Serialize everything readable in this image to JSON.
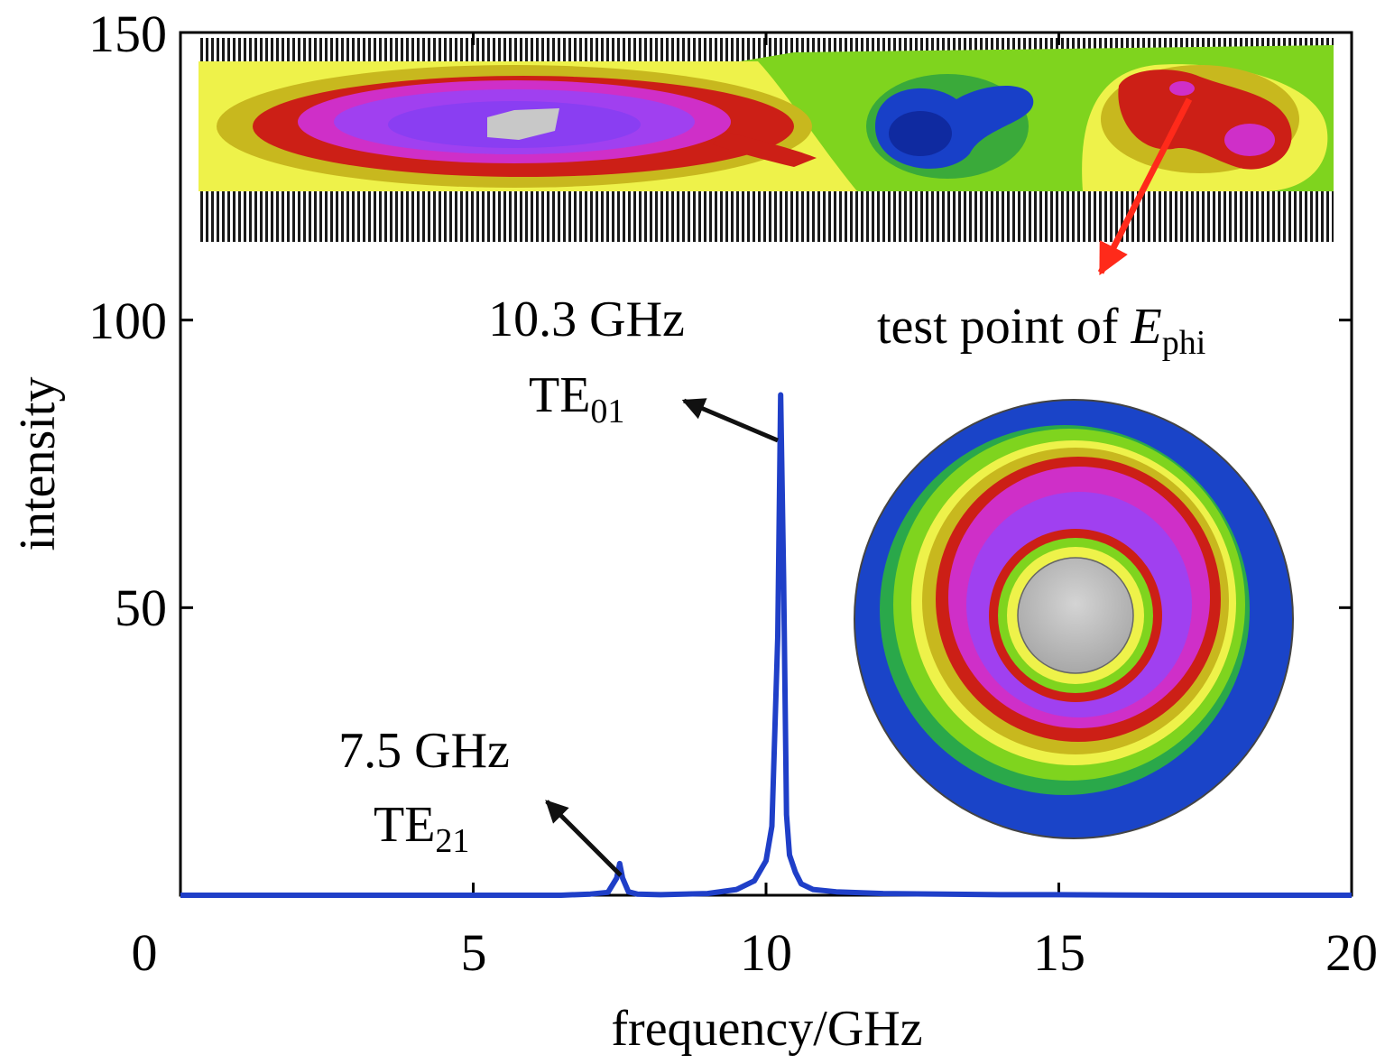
{
  "chart_data": {
    "type": "line",
    "xlabel": "frequency/GHz",
    "ylabel": "intensity",
    "xlim": [
      0,
      20
    ],
    "ylim": [
      0,
      150
    ],
    "x_ticks": [
      "0",
      "5",
      "10",
      "15",
      "20"
    ],
    "y_ticks": [
      "50",
      "100",
      "150"
    ],
    "grid": false,
    "series_color": "#1f3fc8",
    "series": [
      {
        "x": [
          0,
          1,
          2,
          3,
          4,
          5,
          6,
          6.5,
          7,
          7.3,
          7.45,
          7.5,
          7.55,
          7.65,
          7.8,
          8.2,
          9,
          9.5,
          9.8,
          10.0,
          10.1,
          10.2,
          10.25,
          10.3,
          10.35,
          10.4,
          10.5,
          10.6,
          10.8,
          11.2,
          12,
          13,
          14,
          15,
          16,
          17,
          18,
          19,
          20
        ],
        "y": [
          0,
          0,
          0,
          0,
          0,
          0,
          0,
          0,
          0.2,
          0.5,
          3,
          5.5,
          3,
          0.6,
          0.2,
          0.1,
          0.3,
          1,
          2.5,
          6,
          12,
          45,
          87,
          55,
          14,
          7,
          4,
          2,
          1,
          0.6,
          0.3,
          0.2,
          0.1,
          0.1,
          0.05,
          0,
          0,
          0,
          0
        ]
      }
    ],
    "annotations": [
      {
        "freq": "10.3 GHz",
        "mode": "TE",
        "mode_sub": "01",
        "x": 10.3,
        "y": 87
      },
      {
        "freq": "7.5 GHz",
        "mode": "TE",
        "mode_sub": "21",
        "x": 7.5,
        "y": 5.5
      }
    ],
    "inset_label": {
      "prefix": "test point of ",
      "symbol": "E",
      "symbol_sub": "phi"
    }
  }
}
